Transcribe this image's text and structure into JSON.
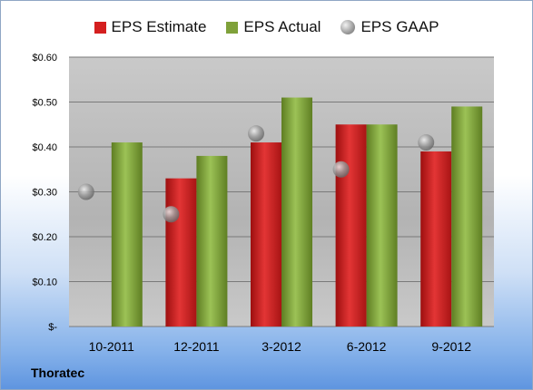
{
  "chart_data": {
    "type": "bar",
    "categories": [
      "10-2011",
      "12-2011",
      "3-2012",
      "6-2012",
      "9-2012"
    ],
    "series": [
      {
        "name": "EPS Estimate",
        "values": [
          null,
          0.33,
          0.41,
          0.45,
          0.39
        ],
        "color": "#d41f1f"
      },
      {
        "name": "EPS Actual",
        "values": [
          0.41,
          0.38,
          0.51,
          0.45,
          0.49
        ],
        "color": "#7fa13a"
      },
      {
        "name": "EPS GAAP",
        "values": [
          0.3,
          0.25,
          0.43,
          0.35,
          0.41
        ],
        "color": "#9a9a9a",
        "marker": "circle"
      }
    ],
    "ylim": [
      0,
      0.6
    ],
    "yticks": [
      0,
      0.1,
      0.2,
      0.3,
      0.4,
      0.5,
      0.6
    ],
    "ytick_labels": [
      "$-",
      "$0.10",
      "$0.20",
      "$0.30",
      "$0.40",
      "$0.50",
      "$0.60"
    ],
    "grid": true,
    "legend_position": "top"
  },
  "company": "Thoratec"
}
